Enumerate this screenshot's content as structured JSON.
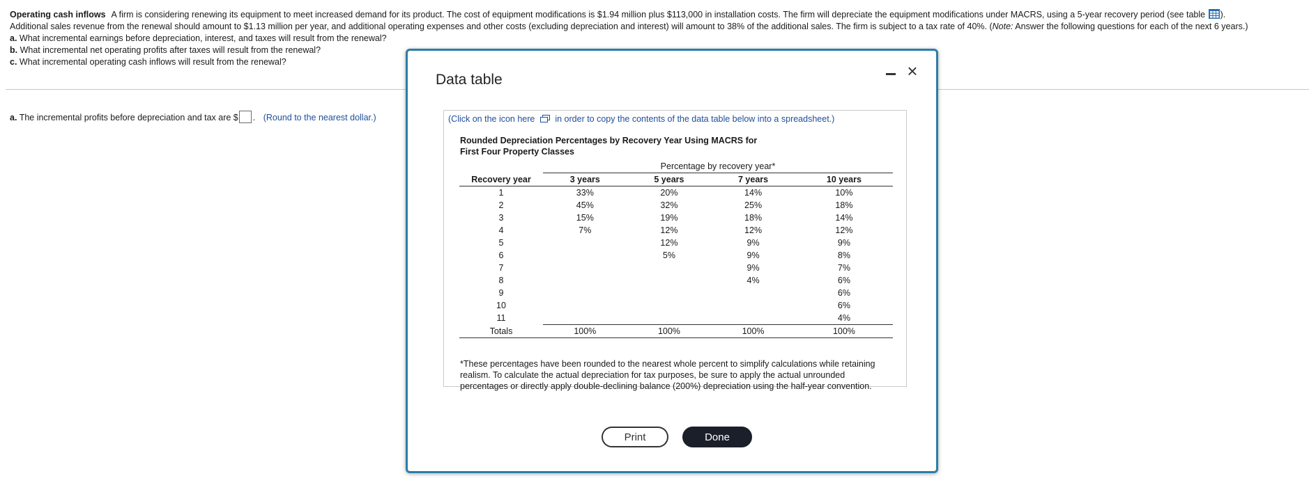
{
  "problem": {
    "title": "Operating cash inflows",
    "line1": "A firm is considering renewing its equipment to meet increased demand for its product.  The cost of equipment modifications is $1.94 million plus $113,000 in installation costs.  The firm will depreciate the equipment modifications under MACRS, using a 5-year recovery period (see table",
    "line1_end": ").",
    "line2_start": "Additional sales revenue from the renewal should amount to $1.13 million per year, and additional operating expenses and other costs (excluding depreciation and interest) will amount to 38% of the additional sales.  The firm is subject to a tax rate of 40%. (",
    "note_label": "Note:",
    "line2_end": " Answer the following questions for each of the next 6 years.)",
    "questions": [
      {
        "label": "a.",
        "text": "What incremental earnings before depreciation, interest, and taxes will result from the renewal?"
      },
      {
        "label": "b.",
        "text": "What incremental net operating profits after taxes will result from the renewal?"
      },
      {
        "label": "c.",
        "text": "What incremental operating cash inflows will result from the renewal?"
      }
    ]
  },
  "answer": {
    "label": "a.",
    "text": "The incremental profits before depreciation and tax are $",
    "value": "",
    "after": ".",
    "hint": "(Round to the nearest dollar.)"
  },
  "modal": {
    "title": "Data table",
    "copy_note_start": "(Click on the icon here",
    "copy_note_end": "in order to copy the contents of the data table below into a spreadsheet.)",
    "table_title_line1": "Rounded Depreciation Percentages by Recovery Year Using MACRS for",
    "table_title_line2": "First Four Property Classes",
    "group_header": "Percentage by recovery year*",
    "headers": [
      "Recovery year",
      "3 years",
      "5 years",
      "7 years",
      "10 years"
    ],
    "rows": [
      [
        "1",
        "33%",
        "20%",
        "14%",
        "10%"
      ],
      [
        "2",
        "45%",
        "32%",
        "25%",
        "18%"
      ],
      [
        "3",
        "15%",
        "19%",
        "18%",
        "14%"
      ],
      [
        "4",
        "7%",
        "12%",
        "12%",
        "12%"
      ],
      [
        "5",
        "",
        "12%",
        "9%",
        "9%"
      ],
      [
        "6",
        "",
        "5%",
        "9%",
        "8%"
      ],
      [
        "7",
        "",
        "",
        "9%",
        "7%"
      ],
      [
        "8",
        "",
        "",
        "4%",
        "6%"
      ],
      [
        "9",
        "",
        "",
        "",
        "6%"
      ],
      [
        "10",
        "",
        "",
        "",
        "6%"
      ],
      [
        "11",
        "",
        "",
        "",
        "4%"
      ]
    ],
    "totals": [
      "Totals",
      "100%",
      "100%",
      "100%",
      "100%"
    ],
    "footnote": "*These percentages have been rounded to the nearest whole percent to simplify calculations while retaining realism. To calculate the actual depreciation for tax purposes, be sure to apply the actual unrounded percentages or directly apply double-declining balance (200%) depreciation using the half-year convention.",
    "print_label": "Print",
    "done_label": "Done"
  }
}
